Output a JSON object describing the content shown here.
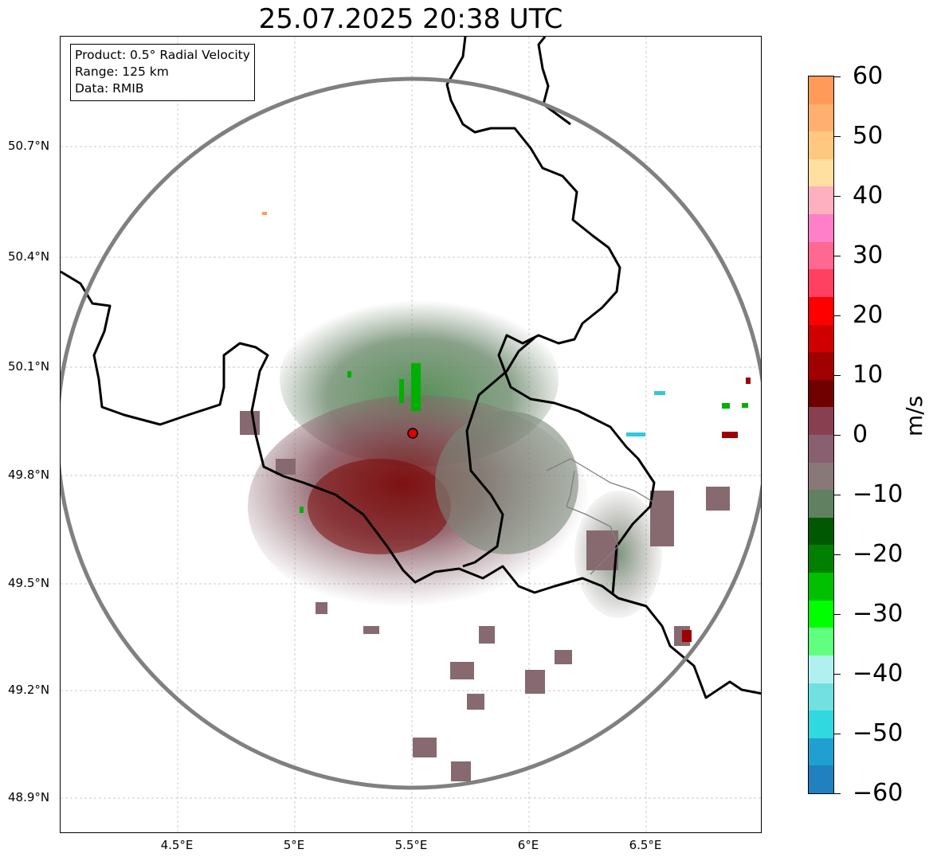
{
  "title": "25.07.2025 20:38 UTC",
  "infobox": {
    "product": "Product: 0.5° Radial Velocity",
    "range": "Range: 125 km",
    "data": "Data: RMIB"
  },
  "map": {
    "lat_ticks": [
      "50.7°N",
      "50.4°N",
      "50.1°N",
      "49.8°N",
      "49.5°N",
      "49.2°N",
      "48.9°N"
    ],
    "lon_ticks": [
      "4.5°E",
      "5°E",
      "5.5°E",
      "6°E",
      "6.5°E"
    ],
    "radar_site_color": "#e00000",
    "range_ring_color": "#808080",
    "border_color": "#000000"
  },
  "colorbar": {
    "unit": "m/s",
    "ticks": [
      "60",
      "50",
      "40",
      "30",
      "20",
      "10",
      "0",
      "−10",
      "−20",
      "−30",
      "−40",
      "−50",
      "−60"
    ],
    "colors": [
      "#ff9a58",
      "#ffb070",
      "#ffc880",
      "#ffe0a0",
      "#ffb0c0",
      "#ff80c8",
      "#ff6890",
      "#ff4060",
      "#ff0000",
      "#d00000",
      "#a00000",
      "#700000",
      "#884050",
      "#886070",
      "#887878",
      "#608060",
      "#005800",
      "#008000",
      "#00c000",
      "#00ff00",
      "#60ff80",
      "#b0f0f0",
      "#70e0e0",
      "#30d8e0",
      "#20a0d0",
      "#2080c0"
    ]
  }
}
